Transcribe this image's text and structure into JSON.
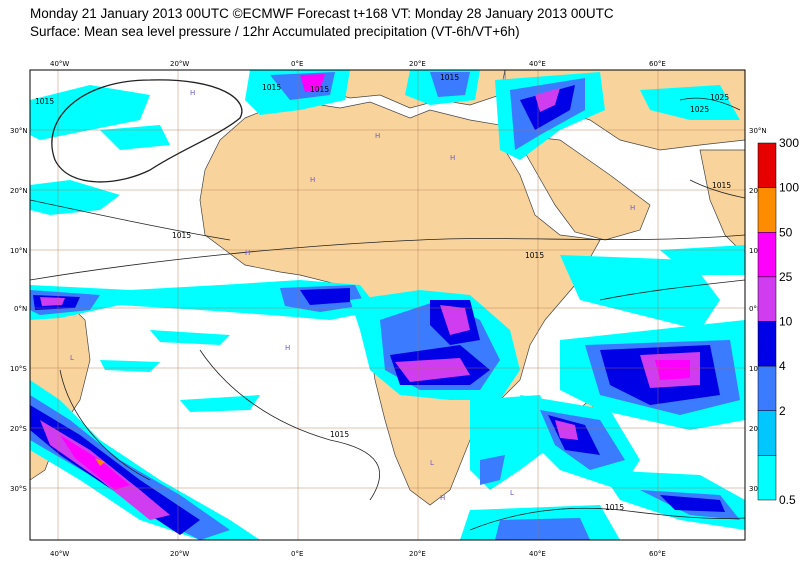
{
  "header": {
    "line1": "Monday 21 January 2013 00UTC ©ECMWF Forecast t+168 VT: Monday 28 January 2013 00UTC",
    "line2": "Surface: Mean sea level pressure / 12hr Accumulated precipitation (VT-6h/VT+6h)"
  },
  "axes": {
    "top_lon": [
      "40°W",
      "20°W",
      "0°E",
      "20°E",
      "40°E",
      "60°E"
    ],
    "bottom_lon": [
      "40°W",
      "20°W",
      "0°E",
      "20°E",
      "40°E",
      "60°E"
    ],
    "left_lat": [
      "30°N",
      "20°N",
      "10°N",
      "0°N",
      "10°S",
      "20°S",
      "30°S"
    ],
    "right_lat": [
      "30°N",
      "20°N",
      "10°N",
      "0°N",
      "10°S",
      "20°S",
      "30°S"
    ]
  },
  "isobar_labels": [
    "1015",
    "1015",
    "1015",
    "1015",
    "1015",
    "1015",
    "1025",
    "1025",
    "1015",
    "1015",
    "1015"
  ],
  "pressure_centres": [
    "H",
    "H",
    "H",
    "H",
    "H",
    "L",
    "L",
    "H",
    "H",
    "L",
    "H"
  ],
  "colorbar": {
    "levels": [
      "300",
      "100",
      "50",
      "25",
      "10",
      "4",
      "2",
      "0.5"
    ],
    "colors": [
      "#e60000",
      "#ff8c00",
      "#ff00ff",
      "#d03cf0",
      "#0000e6",
      "#3a7bff",
      "#00c8ff",
      "#00ffff"
    ]
  },
  "colors": {
    "land": "#f8d49c",
    "ocean": "#ffffff",
    "graticule": "#b0704a"
  }
}
